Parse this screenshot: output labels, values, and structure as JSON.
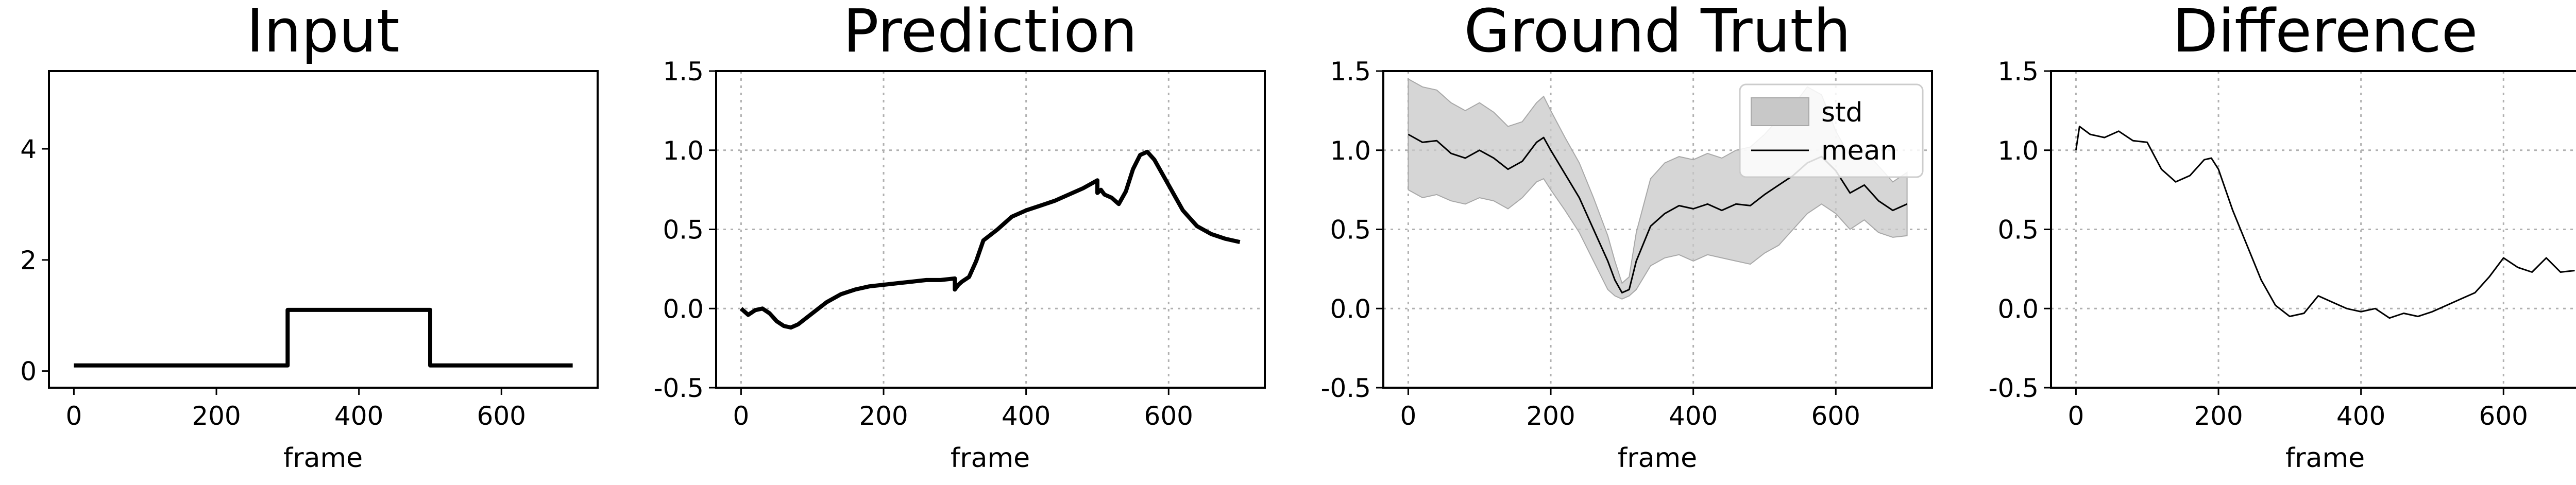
{
  "chart_data": [
    {
      "type": "line",
      "title": "Input",
      "xlabel": "frame",
      "ylabel": "",
      "xlim": [
        -35,
        735
      ],
      "ylim": [
        -0.3,
        5.4
      ],
      "xticks": [
        0,
        200,
        400,
        600
      ],
      "yticks": [
        0,
        2,
        4
      ],
      "grid": false,
      "series": [
        {
          "x": [
            0,
            300,
            300,
            500,
            500,
            700
          ],
          "y": [
            0.1,
            0.1,
            1.1,
            1.1,
            0.1,
            0.1
          ]
        }
      ]
    },
    {
      "type": "line",
      "title": "Prediction",
      "xlabel": "frame",
      "ylabel": "",
      "xlim": [
        -35,
        735
      ],
      "ylim": [
        -0.5,
        1.5
      ],
      "xticks": [
        0,
        200,
        400,
        600
      ],
      "yticks": [
        -0.5,
        0.0,
        0.5,
        1.0,
        1.5
      ],
      "grid": true,
      "series": [
        {
          "x": [
            0,
            10,
            20,
            30,
            40,
            50,
            60,
            70,
            80,
            100,
            120,
            140,
            160,
            180,
            200,
            220,
            240,
            260,
            280,
            300,
            300,
            305,
            310,
            320,
            330,
            340,
            360,
            380,
            400,
            420,
            440,
            460,
            480,
            500,
            500,
            505,
            510,
            520,
            530,
            540,
            550,
            560,
            570,
            580,
            600,
            620,
            640,
            660,
            680,
            700
          ],
          "y": [
            0.0,
            -0.04,
            -0.01,
            0.0,
            -0.03,
            -0.08,
            -0.11,
            -0.12,
            -0.1,
            -0.03,
            0.04,
            0.09,
            0.12,
            0.14,
            0.15,
            0.16,
            0.17,
            0.18,
            0.18,
            0.19,
            0.12,
            0.15,
            0.17,
            0.2,
            0.3,
            0.43,
            0.5,
            0.58,
            0.62,
            0.65,
            0.68,
            0.72,
            0.76,
            0.81,
            0.73,
            0.75,
            0.72,
            0.7,
            0.66,
            0.74,
            0.88,
            0.97,
            0.99,
            0.94,
            0.78,
            0.62,
            0.52,
            0.47,
            0.44,
            0.42
          ]
        }
      ]
    },
    {
      "type": "area",
      "title": "Ground Truth",
      "xlabel": "frame",
      "ylabel": "",
      "xlim": [
        -35,
        735
      ],
      "ylim": [
        -0.5,
        1.5
      ],
      "xticks": [
        0,
        200,
        400,
        600
      ],
      "yticks": [
        -0.5,
        0.0,
        0.5,
        1.0,
        1.5
      ],
      "grid": true,
      "legend": {
        "position": "top-right",
        "entries": [
          "std",
          "mean"
        ]
      },
      "series": [
        {
          "name": "mean",
          "x": [
            0,
            20,
            40,
            60,
            80,
            100,
            120,
            140,
            160,
            180,
            190,
            200,
            220,
            240,
            260,
            280,
            290,
            300,
            310,
            320,
            340,
            360,
            380,
            400,
            420,
            440,
            460,
            480,
            500,
            520,
            540,
            560,
            580,
            600,
            620,
            640,
            660,
            680,
            700
          ],
          "y": [
            1.1,
            1.05,
            1.06,
            0.98,
            0.95,
            1.0,
            0.95,
            0.88,
            0.93,
            1.05,
            1.08,
            1.0,
            0.85,
            0.7,
            0.5,
            0.3,
            0.18,
            0.1,
            0.12,
            0.3,
            0.52,
            0.6,
            0.65,
            0.63,
            0.66,
            0.62,
            0.66,
            0.65,
            0.72,
            0.78,
            0.84,
            0.92,
            0.96,
            0.87,
            0.73,
            0.78,
            0.68,
            0.62,
            0.66
          ]
        },
        {
          "name": "std",
          "x": [
            0,
            20,
            40,
            60,
            80,
            100,
            120,
            140,
            160,
            180,
            190,
            200,
            220,
            240,
            260,
            280,
            290,
            300,
            310,
            320,
            340,
            360,
            380,
            400,
            420,
            440,
            460,
            480,
            500,
            520,
            540,
            560,
            580,
            600,
            620,
            640,
            660,
            680,
            700
          ],
          "lower": [
            0.75,
            0.7,
            0.72,
            0.68,
            0.66,
            0.7,
            0.68,
            0.63,
            0.7,
            0.8,
            0.82,
            0.75,
            0.62,
            0.48,
            0.3,
            0.12,
            0.08,
            0.06,
            0.08,
            0.12,
            0.27,
            0.32,
            0.34,
            0.3,
            0.34,
            0.32,
            0.3,
            0.28,
            0.35,
            0.4,
            0.5,
            0.6,
            0.66,
            0.6,
            0.5,
            0.56,
            0.48,
            0.45,
            0.46
          ],
          "upper": [
            1.45,
            1.4,
            1.38,
            1.3,
            1.25,
            1.3,
            1.24,
            1.15,
            1.18,
            1.3,
            1.34,
            1.25,
            1.08,
            0.92,
            0.7,
            0.46,
            0.3,
            0.16,
            0.2,
            0.48,
            0.82,
            0.92,
            0.96,
            0.94,
            0.98,
            0.95,
            1.0,
            1.02,
            1.1,
            1.2,
            1.28,
            1.4,
            1.35,
            1.12,
            0.96,
            1.0,
            0.9,
            0.8,
            0.86
          ]
        }
      ]
    },
    {
      "type": "line",
      "title": "Difference",
      "xlabel": "frame",
      "ylabel": "",
      "xlim": [
        -35,
        735
      ],
      "ylim": [
        -0.5,
        1.5
      ],
      "xticks": [
        0,
        200,
        400,
        600
      ],
      "yticks": [
        -0.5,
        0.0,
        0.5,
        1.0,
        1.5
      ],
      "grid": true,
      "series": [
        {
          "x": [
            0,
            5,
            20,
            40,
            60,
            80,
            100,
            120,
            140,
            160,
            180,
            190,
            200,
            220,
            240,
            260,
            280,
            300,
            320,
            340,
            360,
            380,
            400,
            420,
            440,
            460,
            480,
            500,
            520,
            540,
            560,
            580,
            600,
            620,
            640,
            660,
            680,
            700
          ],
          "y": [
            1.0,
            1.15,
            1.1,
            1.08,
            1.12,
            1.06,
            1.05,
            0.88,
            0.8,
            0.84,
            0.94,
            0.95,
            0.88,
            0.62,
            0.4,
            0.18,
            0.02,
            -0.05,
            -0.03,
            0.08,
            0.04,
            0.0,
            -0.02,
            0.0,
            -0.06,
            -0.03,
            -0.05,
            -0.02,
            0.02,
            0.06,
            0.1,
            0.2,
            0.32,
            0.26,
            0.23,
            0.32,
            0.23,
            0.24
          ]
        }
      ]
    }
  ]
}
